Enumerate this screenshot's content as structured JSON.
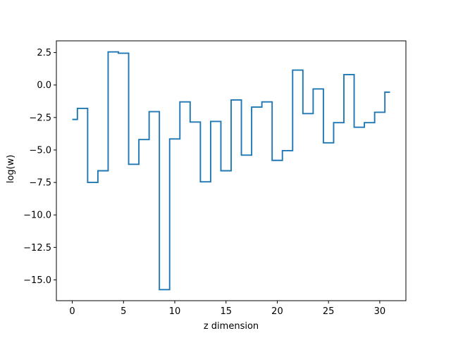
{
  "chart_data": {
    "type": "line",
    "drawstyle": "steps-mid",
    "title": "",
    "xlabel": "z dimension",
    "ylabel": "log(w)",
    "xlim": [
      -1.55,
      32.55
    ],
    "ylim": [
      -16.6,
      3.4
    ],
    "xticks": [
      0,
      5,
      10,
      15,
      20,
      25,
      30
    ],
    "yticks": [
      2.5,
      0.0,
      -2.5,
      -5.0,
      -7.5,
      -10.0,
      -12.5,
      -15.0
    ],
    "ytick_labels": [
      "2.5",
      "0.0",
      "−2.5",
      "−5.0",
      "−7.5",
      "−10.0",
      "−12.5",
      "−15.0"
    ],
    "grid": false,
    "series": [
      {
        "color": "#1f77b4",
        "x": [
          0,
          1,
          2,
          3,
          4,
          5,
          6,
          7,
          8,
          9,
          10,
          11,
          12,
          13,
          14,
          15,
          16,
          17,
          18,
          19,
          20,
          21,
          22,
          23,
          24,
          25,
          26,
          27,
          28,
          29,
          30,
          31
        ],
        "y": [
          -2.65,
          -1.8,
          -7.5,
          -6.6,
          2.55,
          2.45,
          -6.1,
          -4.2,
          -2.05,
          -15.75,
          -4.15,
          -1.3,
          -2.85,
          -7.45,
          -2.8,
          -6.6,
          -1.15,
          -5.4,
          -1.7,
          -1.3,
          -5.8,
          -5.05,
          1.15,
          -2.2,
          -0.3,
          -4.45,
          -2.9,
          0.8,
          -3.25,
          -2.9,
          -2.1,
          -0.55
        ]
      }
    ]
  }
}
